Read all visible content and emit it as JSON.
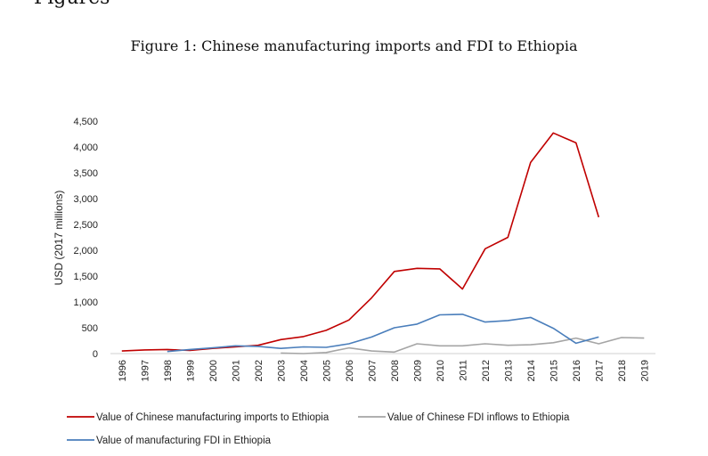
{
  "section_heading": "Figures",
  "figure_title": "Figure 1: Chinese manufacturing imports and FDI to Ethiopia",
  "chart_data": {
    "type": "line",
    "title": "Figure 1: Chinese manufacturing imports and FDI to Ethiopia",
    "xlabel": "",
    "ylabel": "USD (2017 millions)",
    "ylim": [
      0,
      4500
    ],
    "yticks": [
      0,
      500,
      1000,
      1500,
      2000,
      2500,
      3000,
      3500,
      4000,
      4500
    ],
    "ytick_labels": [
      "0",
      "500",
      "1,000",
      "1,500",
      "2,000",
      "2,500",
      "3,000",
      "3,500",
      "4,000",
      "4,500"
    ],
    "categories": [
      "1996",
      "1997",
      "1998",
      "1999",
      "2000",
      "2001",
      "2002",
      "2003",
      "2004",
      "2005",
      "2006",
      "2007",
      "2008",
      "2009",
      "2010",
      "2011",
      "2012",
      "2013",
      "2014",
      "2015",
      "2016",
      "2017",
      "2018",
      "2019"
    ],
    "grid": false,
    "legend_position": "bottom",
    "series": [
      {
        "name": "Value of Chinese manufacturing imports to Ethiopia",
        "color": "#c00000",
        "values": [
          50,
          70,
          80,
          60,
          100,
          130,
          160,
          270,
          330,
          450,
          650,
          1080,
          1590,
          1650,
          1640,
          1250,
          2030,
          2250,
          3700,
          4270,
          4080,
          2640,
          null,
          null
        ]
      },
      {
        "name": "Value of Chinese FDI inflows to Ethiopia",
        "color": "#a5a5a5",
        "values": [
          null,
          null,
          null,
          null,
          null,
          null,
          null,
          10,
          0,
          20,
          110,
          50,
          30,
          190,
          150,
          150,
          190,
          160,
          170,
          210,
          300,
          190,
          310,
          300
        ]
      },
      {
        "name": "Value of manufacturing FDI in Ethiopia",
        "color": "#4a7ebb",
        "values": [
          null,
          null,
          40,
          80,
          110,
          150,
          140,
          100,
          130,
          120,
          190,
          320,
          500,
          570,
          750,
          760,
          610,
          640,
          700,
          490,
          200,
          320,
          null,
          null
        ]
      }
    ]
  }
}
